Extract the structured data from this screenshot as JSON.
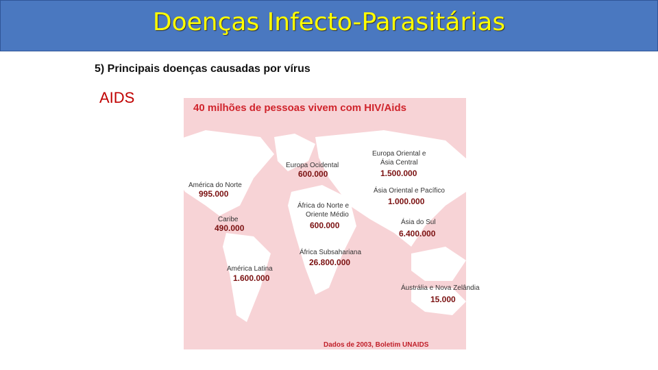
{
  "header": {
    "title": "Doenças Infecto-Parasitárias"
  },
  "subtitle": "5) Principais doenças causadas por vírus",
  "topic": "AIDS",
  "map": {
    "title": "40 milhões de pessoas vivem com HIV/Aids",
    "regions": [
      {
        "name": [
          "Europa Ocidental"
        ],
        "value": "600.000"
      },
      {
        "name": [
          "Europa Oriental e",
          "Ásia Central"
        ],
        "value": "1.500.000"
      },
      {
        "name": [
          "América do Norte"
        ],
        "value": "995.000"
      },
      {
        "name": [
          "Ásia Oriental e Pacífico"
        ],
        "value": "1.000.000"
      },
      {
        "name": [
          "África do Norte e",
          "Oriente Médio"
        ],
        "value": "600.000"
      },
      {
        "name": [
          "Caribe"
        ],
        "value": "490.000"
      },
      {
        "name": [
          "Ásia do Sul"
        ],
        "value": "6.400.000"
      },
      {
        "name": [
          "África Subsahariana"
        ],
        "value": "26.800.000"
      },
      {
        "name": [
          "América Latina"
        ],
        "value": "1.600.000"
      },
      {
        "name": [
          "Áustrália e Nova Zelândia"
        ],
        "value": "15.000"
      }
    ],
    "source": "Dados de 2003, Boletim UNAIDS"
  }
}
